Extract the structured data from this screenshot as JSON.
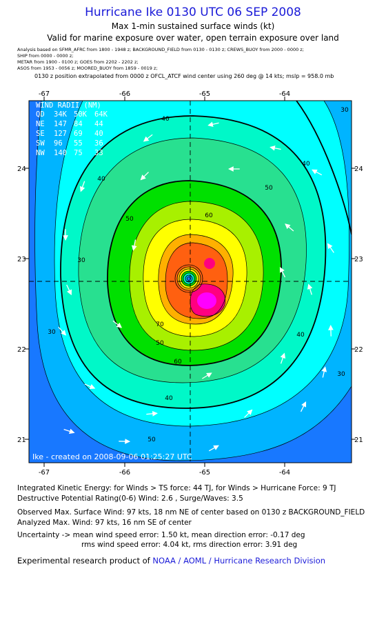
{
  "title": "Hurricane Ike 0130 UTC 06 SEP 2008",
  "subtitle1": "Max 1-min sustained surface winds (kt)",
  "subtitle2": "Valid for marine exposure over water, open terrain exposure over land",
  "analysis_lines": [
    "Analysis based on   SFMR_AFRC from 1800 - 1948 z;   BACKGROUND_FIELD from 0130 - 0130 z;   CREWS_BUOY from 2000 - 0000 z;",
    "SHIP from 0000 - 0000 z;",
    "METAR from 1900 - 0100 z;   GOES from 2202 - 2202 z;",
    "ASOS from 1953 - 0056 z;   MOORED_BUOY from 1859 - 0019 z;"
  ],
  "position_note": "0130 z position extrapolated from 0000 z OFCL_ATCF wind center using 260 deg @ 14 kts; mslp = 958.0 mb",
  "map": {
    "x_ticks": [
      "-67",
      "-66",
      "-65",
      "-64"
    ],
    "y_ticks": [
      "24",
      "23",
      "22",
      "21"
    ],
    "contour_labels": [
      "40",
      "40",
      "40",
      "30",
      "30",
      "50",
      "50",
      "50",
      "60",
      "60",
      "70",
      "40",
      "30",
      "40",
      "30",
      "50"
    ],
    "wind_radii": {
      "header": "WIND RADII (NM)",
      "columns": [
        "QD",
        "34K",
        "50K",
        "64K"
      ],
      "rows": [
        [
          "NE",
          "147",
          "84",
          "44"
        ],
        [
          "SE",
          "127",
          "69",
          "40"
        ],
        [
          "SW",
          "96",
          "55",
          "36"
        ],
        [
          "NW",
          "140",
          "75",
          "33"
        ]
      ]
    },
    "created": "Ike - created on 2008-09-06 01:25:27 UTC"
  },
  "footer": {
    "ike_line1": "Integrated Kinetic Energy:  for Winds > TS force: 44 TJ,  for Winds > Hurricane Force: 9 TJ",
    "ike_line2": "Destructive Potential Rating(0-6)   Wind: 2.6 , Surge/Waves: 3.5",
    "obs_line1": "Observed Max. Surface Wind: 97 kts, 18 nm NE of center based on 0130 z BACKGROUND_FIELD",
    "obs_line2": "Analyzed Max. Wind: 97 kts, 16 nm SE of center",
    "unc_line1": "Uncertainty -> mean wind speed error: 1.50 kt,   mean direction error:  -0.17 deg",
    "unc_line2": "rms wind speed error: 4.04 kt,   rms direction error: 3.91 deg",
    "credit_prefix": "Experimental research product of ",
    "credit_link": "NOAA / AOML / Hurricane Research Division"
  },
  "colors": {
    "title": "#1a1ad8",
    "bands": [
      "#1878ff",
      "#00b4ff",
      "#00ffff",
      "#00f8c8",
      "#28e090",
      "#00e000",
      "#a8f000",
      "#ffff00",
      "#ffb000",
      "#ff6010",
      "#ff0080",
      "#ff00ff"
    ]
  }
}
